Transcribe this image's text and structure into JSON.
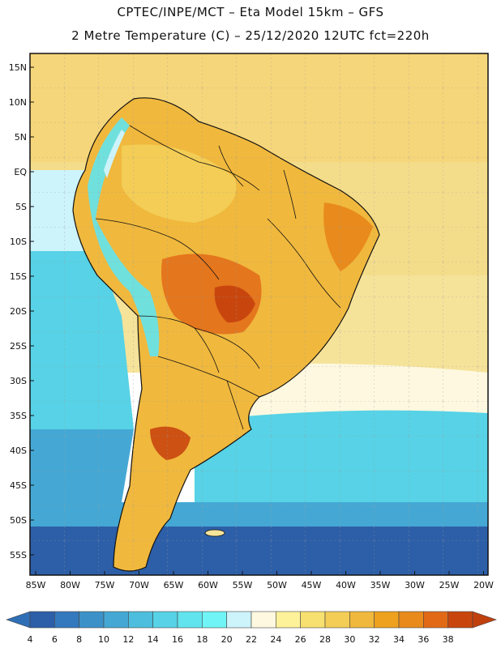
{
  "header": {
    "line1": "CPTEC/INPE/MCT –  Eta Model 15km – GFS",
    "line2": "2 Metre Temperature (C) – 25/12/2020 12UTC fct=220h"
  },
  "map": {
    "lat_labels": [
      "15N",
      "10N",
      "5N",
      "EQ",
      "5S",
      "10S",
      "15S",
      "20S",
      "25S",
      "30S",
      "35S",
      "40S",
      "45S",
      "50S",
      "55S"
    ],
    "lon_labels": [
      "85W",
      "80W",
      "75W",
      "70W",
      "65W",
      "60W",
      "55W",
      "50W",
      "45W",
      "40W",
      "35W",
      "30W",
      "25W",
      "20W"
    ]
  },
  "colorbar": {
    "labels": [
      "4",
      "6",
      "8",
      "10",
      "12",
      "14",
      "16",
      "18",
      "20",
      "22",
      "24",
      "26",
      "28",
      "30",
      "32",
      "34",
      "36",
      "38"
    ],
    "low_color": "#2f6fb5",
    "high_color": "#c0400e",
    "colors": [
      "#2d5fa8",
      "#3478bd",
      "#3c92c8",
      "#45a8d4",
      "#4dbedd",
      "#57d2e6",
      "#62e4ee",
      "#70f4f6",
      "#cdf3fb",
      "#fdf8df",
      "#fdf29a",
      "#f7e070",
      "#f3cd55",
      "#f0b83d",
      "#eea11e",
      "#e88a1c",
      "#e26a17",
      "#c8460e"
    ]
  }
}
